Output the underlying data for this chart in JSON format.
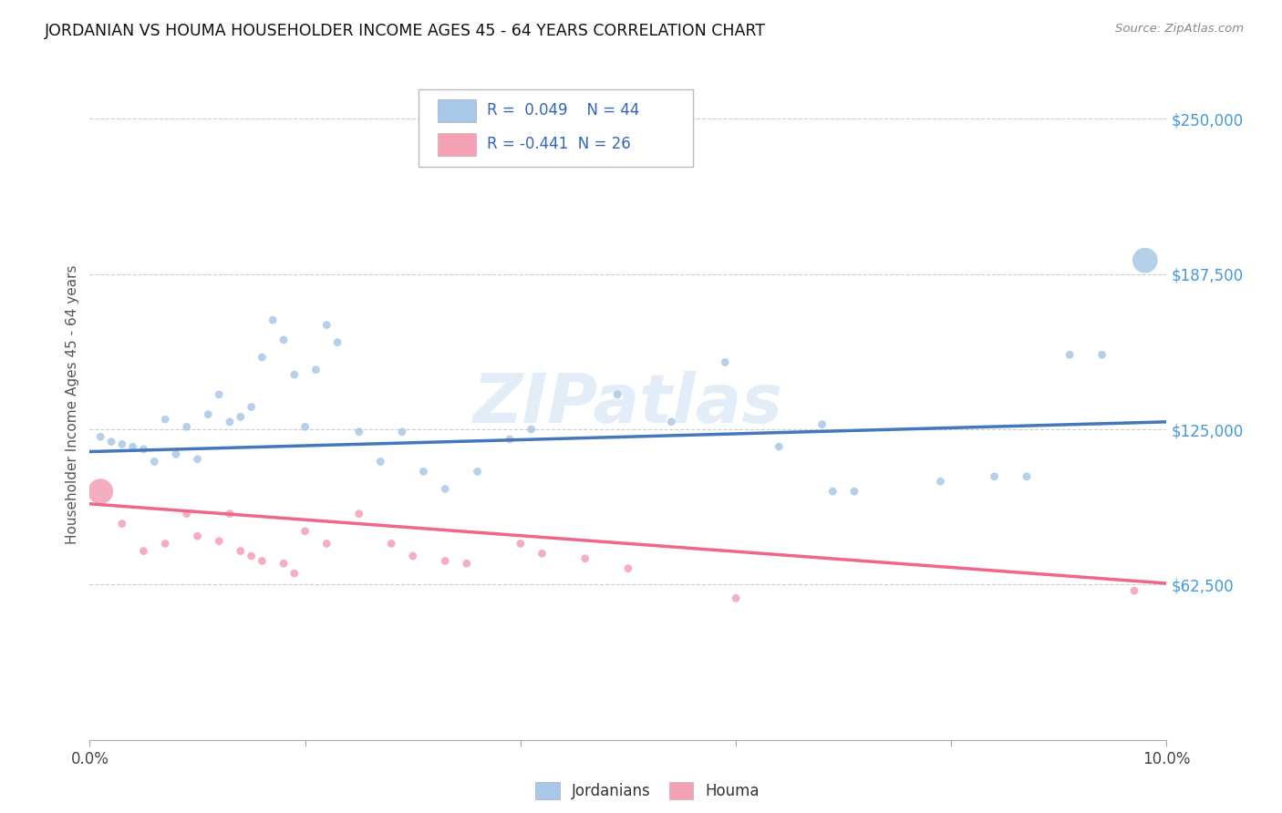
{
  "title": "JORDANIAN VS HOUMA HOUSEHOLDER INCOME AGES 45 - 64 YEARS CORRELATION CHART",
  "source": "Source: ZipAtlas.com",
  "ylabel": "Householder Income Ages 45 - 64 years",
  "xlim": [
    0.0,
    0.1
  ],
  "ylim": [
    0,
    270000
  ],
  "xtick_positions": [
    0.0,
    0.02,
    0.04,
    0.06,
    0.08,
    0.1
  ],
  "xtick_labels": [
    "0.0%",
    "",
    "",
    "",
    "",
    "10.0%"
  ],
  "ytick_positions": [
    62500,
    125000,
    187500,
    250000
  ],
  "ytick_labels": [
    "$62,500",
    "$125,000",
    "$187,500",
    "$250,000"
  ],
  "legend_r_jordanian": "0.049",
  "legend_n_jordanian": "44",
  "legend_r_houma": "-0.441",
  "legend_n_houma": "26",
  "blue_color": "#A8C8E8",
  "pink_color": "#F4A0B5",
  "blue_line_color": "#4477BB",
  "pink_line_color": "#EE6688",
  "right_label_color": "#4499DD",
  "watermark": "ZIPatlas",
  "jordanian_x": [
    0.001,
    0.002,
    0.003,
    0.004,
    0.005,
    0.006,
    0.007,
    0.008,
    0.009,
    0.01,
    0.011,
    0.012,
    0.013,
    0.014,
    0.015,
    0.016,
    0.017,
    0.018,
    0.019,
    0.02,
    0.021,
    0.022,
    0.023,
    0.025,
    0.027,
    0.029,
    0.031,
    0.033,
    0.036,
    0.039,
    0.041,
    0.049,
    0.054,
    0.059,
    0.064,
    0.068,
    0.069,
    0.071,
    0.079,
    0.084,
    0.087,
    0.091,
    0.094,
    0.098
  ],
  "jordanian_y": [
    122000,
    120000,
    119000,
    118000,
    117000,
    112000,
    129000,
    115000,
    126000,
    113000,
    131000,
    139000,
    128000,
    130000,
    134000,
    154000,
    169000,
    161000,
    147000,
    126000,
    149000,
    167000,
    160000,
    124000,
    112000,
    124000,
    108000,
    101000,
    108000,
    121000,
    125000,
    139000,
    128000,
    152000,
    118000,
    127000,
    100000,
    100000,
    104000,
    106000,
    106000,
    155000,
    155000,
    193000
  ],
  "jordanian_s": [
    40,
    40,
    40,
    40,
    40,
    40,
    40,
    40,
    40,
    40,
    40,
    40,
    40,
    40,
    40,
    40,
    40,
    40,
    40,
    40,
    40,
    40,
    40,
    40,
    40,
    40,
    40,
    40,
    40,
    40,
    40,
    40,
    40,
    40,
    40,
    40,
    40,
    40,
    40,
    40,
    40,
    40,
    40,
    400
  ],
  "houma_x": [
    0.001,
    0.003,
    0.005,
    0.007,
    0.009,
    0.01,
    0.012,
    0.013,
    0.014,
    0.015,
    0.016,
    0.018,
    0.019,
    0.02,
    0.022,
    0.025,
    0.028,
    0.03,
    0.033,
    0.035,
    0.04,
    0.042,
    0.046,
    0.05,
    0.06,
    0.097
  ],
  "houma_y": [
    100000,
    87000,
    76000,
    79000,
    91000,
    82000,
    80000,
    91000,
    76000,
    74000,
    72000,
    71000,
    67000,
    84000,
    79000,
    91000,
    79000,
    74000,
    72000,
    71000,
    79000,
    75000,
    73000,
    69000,
    57000,
    60000
  ],
  "houma_s": [
    400,
    40,
    40,
    40,
    40,
    40,
    40,
    40,
    40,
    40,
    40,
    40,
    40,
    40,
    40,
    40,
    40,
    40,
    40,
    40,
    40,
    40,
    40,
    40,
    40,
    40
  ]
}
